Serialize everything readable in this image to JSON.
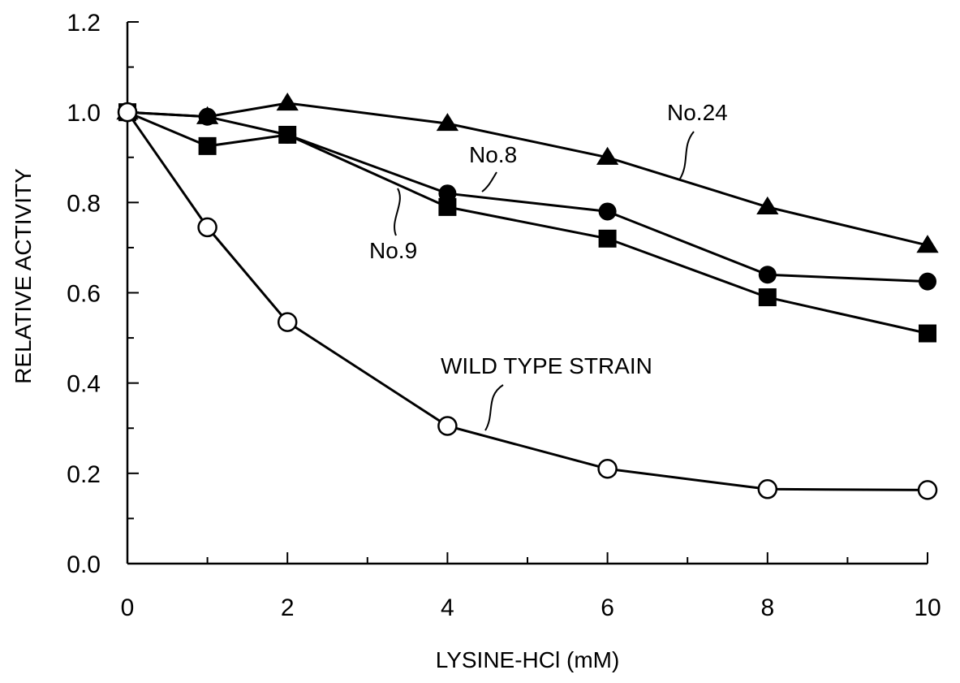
{
  "chart_data": {
    "type": "line",
    "title": "",
    "xlabel": "LYSINE-HCl (mM)",
    "ylabel": "RELATIVE ACTIVITY",
    "xlim": [
      0,
      10
    ],
    "ylim": [
      0,
      1.2
    ],
    "x_ticks": [
      "0",
      "2",
      "4",
      "6",
      "8",
      "10"
    ],
    "y_ticks": [
      "0.0",
      "0.2",
      "0.4",
      "0.6",
      "0.8",
      "1.0",
      "1.2"
    ],
    "grid": false,
    "legend": "none",
    "series": [
      {
        "name": "No.24",
        "marker": "filled-triangle",
        "x": [
          0,
          1,
          2,
          4,
          6,
          8,
          10
        ],
        "y": [
          1.0,
          0.99,
          1.02,
          0.975,
          0.9,
          0.79,
          0.705
        ]
      },
      {
        "name": "No.8",
        "marker": "filled-circle",
        "x": [
          0,
          1,
          2,
          4,
          6,
          8,
          10
        ],
        "y": [
          1.0,
          0.99,
          0.95,
          0.82,
          0.78,
          0.64,
          0.625
        ]
      },
      {
        "name": "No.9",
        "marker": "filled-square",
        "x": [
          0,
          1,
          2,
          4,
          6,
          8,
          10
        ],
        "y": [
          1.0,
          0.925,
          0.95,
          0.79,
          0.72,
          0.59,
          0.51
        ]
      },
      {
        "name": "WILD TYPE STRAIN",
        "marker": "open-circle",
        "x": [
          0,
          1,
          2,
          4,
          6,
          8,
          10
        ],
        "y": [
          1.0,
          0.745,
          0.535,
          0.305,
          0.21,
          0.165,
          0.163
        ]
      }
    ]
  }
}
